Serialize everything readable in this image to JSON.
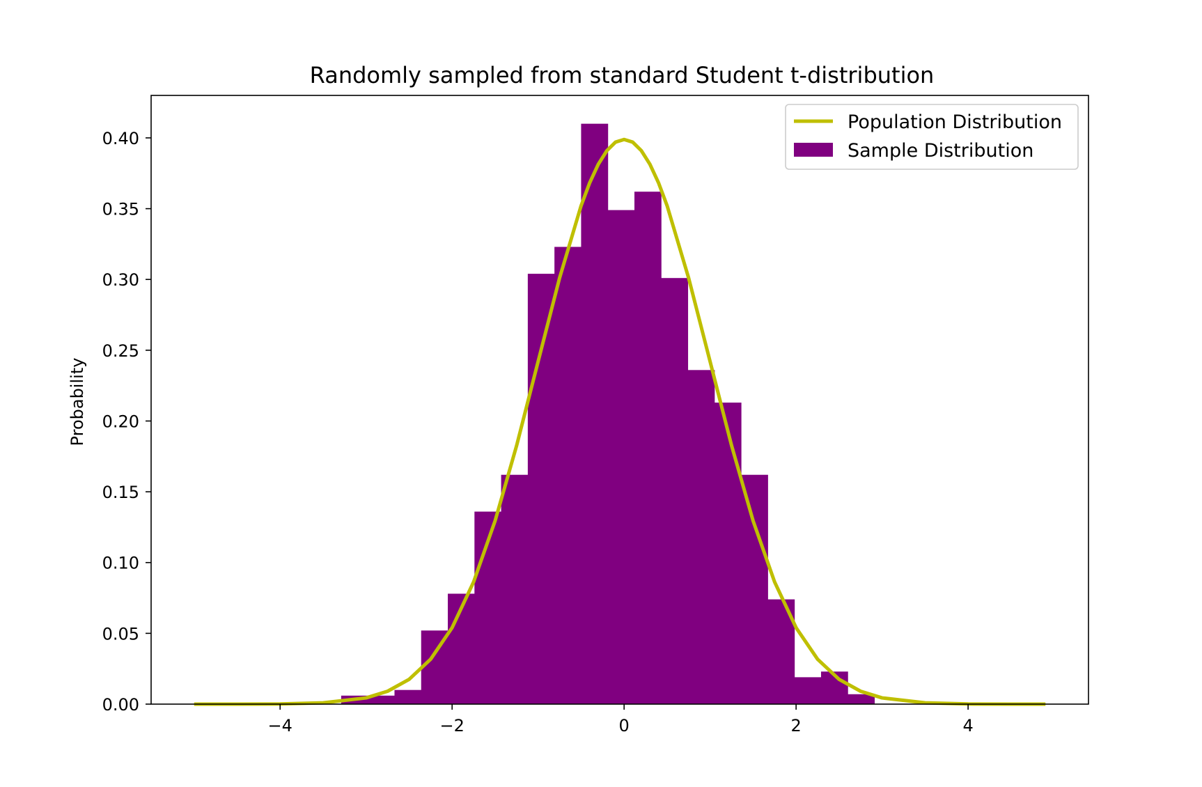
{
  "chart_data": {
    "type": "bar",
    "title": "Randomly sampled from standard Student t-distribution",
    "xlabel": "",
    "ylabel": "Probability",
    "xlim": [
      -5.5,
      5.4
    ],
    "ylim": [
      0,
      0.43
    ],
    "grid": false,
    "legend_position": "top-right",
    "x_ticks": [
      -4,
      -2,
      0,
      2,
      4
    ],
    "x_tick_labels": [
      "−4",
      "−2",
      "0",
      "2",
      "4"
    ],
    "y_ticks": [
      0,
      0.05,
      0.1,
      0.15,
      0.2,
      0.25,
      0.3,
      0.35,
      0.4
    ],
    "y_tick_labels": [
      "0.00",
      "0.05",
      "0.10",
      "0.15",
      "0.20",
      "0.25",
      "0.30",
      "0.35",
      "0.40"
    ],
    "series": [
      {
        "name": "Sample Distribution",
        "kind": "histogram",
        "color": "#800080",
        "bins": [
          {
            "x0": -3.29,
            "x1": -2.98,
            "value": 0.006
          },
          {
            "x0": -2.98,
            "x1": -2.67,
            "value": 0.006
          },
          {
            "x0": -2.67,
            "x1": -2.36,
            "value": 0.01
          },
          {
            "x0": -2.36,
            "x1": -2.05,
            "value": 0.052
          },
          {
            "x0": -2.05,
            "x1": -1.74,
            "value": 0.078
          },
          {
            "x0": -1.74,
            "x1": -1.43,
            "value": 0.136
          },
          {
            "x0": -1.43,
            "x1": -1.12,
            "value": 0.162
          },
          {
            "x0": -1.12,
            "x1": -0.81,
            "value": 0.304
          },
          {
            "x0": -0.81,
            "x1": -0.5,
            "value": 0.323
          },
          {
            "x0": -0.5,
            "x1": -0.19,
            "value": 0.41
          },
          {
            "x0": -0.19,
            "x1": 0.12,
            "value": 0.349
          },
          {
            "x0": 0.12,
            "x1": 0.43,
            "value": 0.362
          },
          {
            "x0": 0.43,
            "x1": 0.74,
            "value": 0.301
          },
          {
            "x0": 0.74,
            "x1": 1.05,
            "value": 0.236
          },
          {
            "x0": 1.05,
            "x1": 1.36,
            "value": 0.213
          },
          {
            "x0": 1.36,
            "x1": 1.67,
            "value": 0.162
          },
          {
            "x0": 1.67,
            "x1": 1.98,
            "value": 0.074
          },
          {
            "x0": 1.98,
            "x1": 2.29,
            "value": 0.019
          },
          {
            "x0": 2.29,
            "x1": 2.6,
            "value": 0.023
          },
          {
            "x0": 2.6,
            "x1": 2.91,
            "value": 0.007
          }
        ]
      },
      {
        "name": "Population Distribution",
        "kind": "line",
        "color": "#bfbf00",
        "x": [
          -5.0,
          -4.5,
          -4.0,
          -3.5,
          -3.0,
          -2.75,
          -2.5,
          -2.25,
          -2.0,
          -1.75,
          -1.5,
          -1.25,
          -1.0,
          -0.75,
          -0.5,
          -0.4,
          -0.3,
          -0.2,
          -0.1,
          0.0,
          0.1,
          0.2,
          0.3,
          0.4,
          0.5,
          0.75,
          1.0,
          1.25,
          1.5,
          1.75,
          2.0,
          2.25,
          2.5,
          2.75,
          3.0,
          3.5,
          4.0,
          4.5,
          4.9
        ],
        "y": [
          0.0,
          0.0,
          0.0001,
          0.0009,
          0.0044,
          0.0091,
          0.0175,
          0.0317,
          0.054,
          0.0863,
          0.1295,
          0.1826,
          0.242,
          0.3011,
          0.3521,
          0.3683,
          0.3814,
          0.391,
          0.397,
          0.3989,
          0.397,
          0.391,
          0.3814,
          0.3683,
          0.3521,
          0.3011,
          0.242,
          0.1826,
          0.1295,
          0.0863,
          0.054,
          0.0317,
          0.0175,
          0.0091,
          0.0044,
          0.0009,
          0.0001,
          0.0,
          0.0
        ]
      }
    ],
    "legend": [
      {
        "label": "Population Distribution",
        "marker": "line",
        "color": "#bfbf00"
      },
      {
        "label": "Sample Distribution",
        "marker": "patch",
        "color": "#800080"
      }
    ]
  }
}
